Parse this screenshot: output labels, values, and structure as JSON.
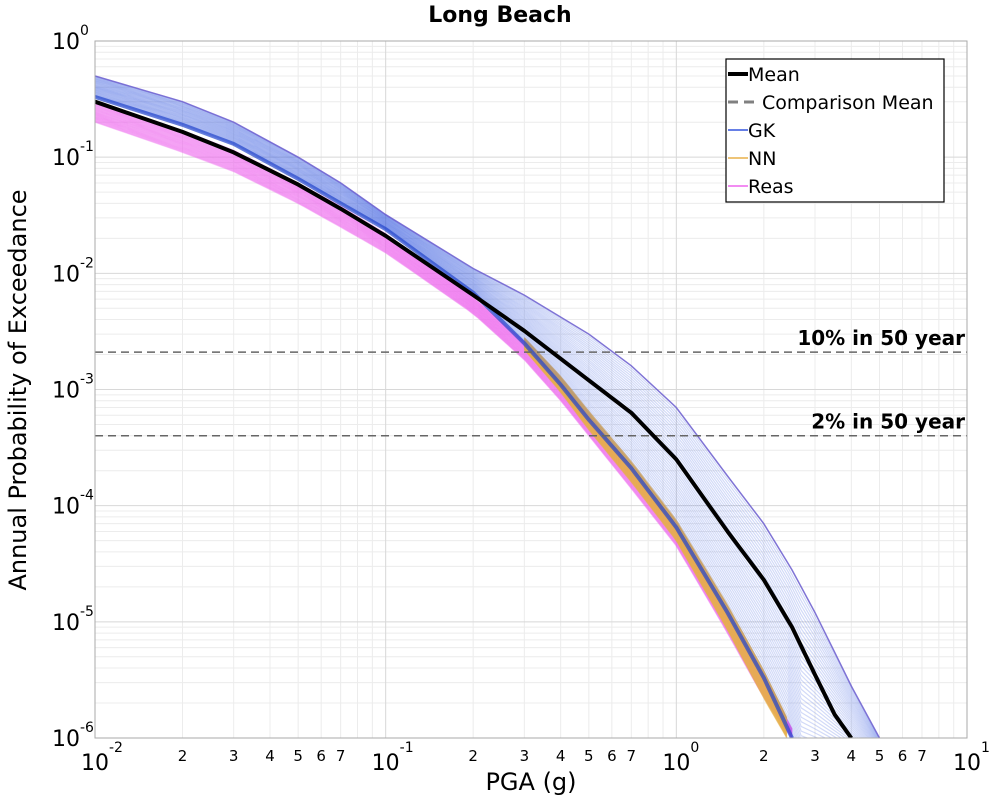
{
  "chart_data": {
    "type": "line",
    "title": "Long Beach",
    "xlabel": "PGA (g)",
    "ylabel": "Annual Probability of Exceedance",
    "x_scale": "log",
    "y_scale": "log",
    "xlim": [
      0.01,
      10
    ],
    "ylim": [
      1e-06,
      1
    ],
    "grid": true,
    "legend_position": "top-right",
    "x_ticks": [
      {
        "value": 0.01,
        "base": "10",
        "exp": "-2"
      },
      {
        "value": 0.1,
        "base": "10",
        "exp": "-1"
      },
      {
        "value": 1,
        "base": "10",
        "exp": "0"
      },
      {
        "value": 10,
        "base": "10",
        "exp": "1"
      }
    ],
    "x_minor_ticks": [
      {
        "value": 0.02,
        "label": "2"
      },
      {
        "value": 0.03,
        "label": "3"
      },
      {
        "value": 0.04,
        "label": "4"
      },
      {
        "value": 0.05,
        "label": "5"
      },
      {
        "value": 0.06,
        "label": "6"
      },
      {
        "value": 0.07,
        "label": "7"
      },
      {
        "value": 0.2,
        "label": "2"
      },
      {
        "value": 0.3,
        "label": "3"
      },
      {
        "value": 0.4,
        "label": "4"
      },
      {
        "value": 0.5,
        "label": "5"
      },
      {
        "value": 0.6,
        "label": "6"
      },
      {
        "value": 0.7,
        "label": "7"
      },
      {
        "value": 2,
        "label": "2"
      },
      {
        "value": 3,
        "label": "3"
      },
      {
        "value": 4,
        "label": "4"
      },
      {
        "value": 5,
        "label": "5"
      },
      {
        "value": 6,
        "label": "6"
      },
      {
        "value": 7,
        "label": "7"
      }
    ],
    "y_ticks": [
      {
        "value": 1,
        "base": "10",
        "exp": "0"
      },
      {
        "value": 0.1,
        "base": "10",
        "exp": "-1"
      },
      {
        "value": 0.01,
        "base": "10",
        "exp": "-2"
      },
      {
        "value": 0.001,
        "base": "10",
        "exp": "-3"
      },
      {
        "value": 0.0001,
        "base": "10",
        "exp": "-4"
      },
      {
        "value": 1e-05,
        "base": "10",
        "exp": "-5"
      },
      {
        "value": 1e-06,
        "base": "10",
        "exp": "-6"
      }
    ],
    "reference_lines": [
      {
        "y": 0.0021,
        "label": "10% in 50 year"
      },
      {
        "y": 0.0004,
        "label": "2% in 50 year"
      }
    ],
    "series": [
      {
        "name": "Mean",
        "color": "#000000",
        "style": "solid",
        "x": [
          0.01,
          0.02,
          0.03,
          0.05,
          0.07,
          0.1,
          0.2,
          0.3,
          0.5,
          0.7,
          1.0,
          1.5,
          2.0,
          2.5,
          3.0,
          3.5,
          4.0
        ],
        "y": [
          0.3,
          0.165,
          0.11,
          0.058,
          0.036,
          0.021,
          0.0065,
          0.0032,
          0.0012,
          0.00063,
          0.00025,
          6e-05,
          2.3e-05,
          9e-06,
          3.5e-06,
          1.6e-06,
          1e-06
        ]
      },
      {
        "name": "Comparison Mean",
        "color": "#808080",
        "style": "dashed",
        "x": [],
        "y": []
      },
      {
        "name": "GK",
        "color": "#3355dd",
        "style": "band",
        "x": [
          0.01,
          0.02,
          0.03,
          0.05,
          0.07,
          0.1,
          0.2,
          0.3,
          0.5,
          0.7,
          1.0,
          1.5,
          2.0,
          2.5,
          3.0,
          3.5,
          4.0,
          5.0
        ],
        "y_upper": [
          0.5,
          0.3,
          0.2,
          0.1,
          0.06,
          0.032,
          0.011,
          0.0065,
          0.003,
          0.0016,
          0.0007,
          0.00018,
          7e-05,
          2.8e-05,
          1.2e-05,
          5.5e-06,
          2.8e-06,
          1e-06
        ],
        "x_lower": [
          0.01,
          0.02,
          0.03,
          0.05,
          0.07,
          0.1,
          0.2,
          0.3,
          0.4,
          0.5,
          0.7,
          1.0,
          1.5,
          2.0,
          2.5
        ],
        "y_lower": [
          0.33,
          0.19,
          0.13,
          0.065,
          0.04,
          0.024,
          0.0068,
          0.0025,
          0.0011,
          0.00055,
          0.00021,
          6.5e-05,
          1.2e-05,
          3.3e-06,
          1e-06
        ]
      },
      {
        "name": "NN",
        "color": "#e8b04a",
        "style": "band",
        "x": [
          0.3,
          0.4,
          0.5,
          0.7,
          1.0,
          1.5,
          2.0,
          2.4
        ],
        "y_upper": [
          0.0028,
          0.0013,
          0.00065,
          0.00024,
          7.5e-05,
          1.4e-05,
          3.8e-06,
          1.5e-06
        ],
        "y_lower": [
          0.0022,
          0.00095,
          0.00045,
          0.00016,
          5e-05,
          8.5e-06,
          2.2e-06,
          1e-06
        ]
      },
      {
        "name": "Reas",
        "color": "#ee66ee",
        "style": "band",
        "x": [
          0.01,
          0.02,
          0.03,
          0.05,
          0.07,
          0.1,
          0.2,
          0.3,
          0.4,
          0.5,
          0.7,
          1.0,
          1.5,
          2.0,
          2.5
        ],
        "y_upper": [
          0.3,
          0.17,
          0.115,
          0.06,
          0.038,
          0.022,
          0.0062,
          0.0026,
          0.0012,
          0.0006,
          0.00022,
          7e-05,
          1.3e-05,
          3.5e-06,
          1.2e-06
        ],
        "y_lower": [
          0.2,
          0.11,
          0.075,
          0.04,
          0.025,
          0.015,
          0.0045,
          0.0018,
          0.0008,
          0.0004,
          0.00014,
          4.5e-05,
          8e-06,
          2.2e-06,
          1e-06
        ]
      }
    ]
  }
}
